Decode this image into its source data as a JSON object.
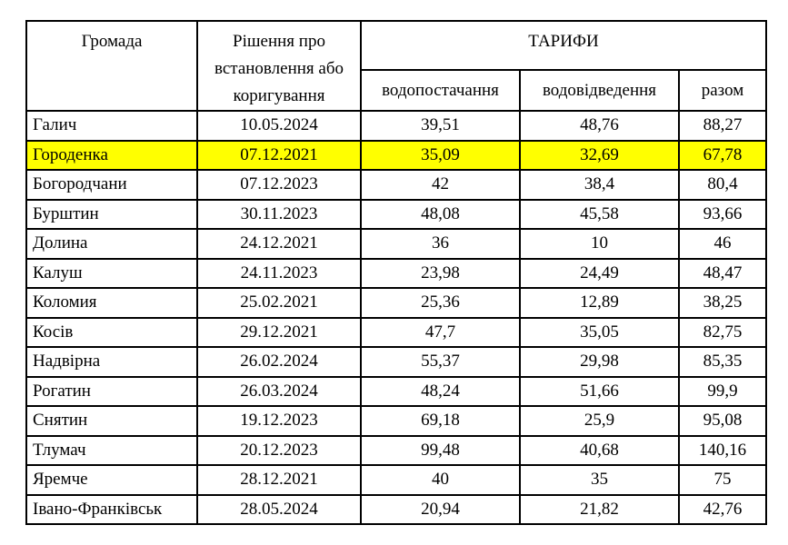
{
  "table": {
    "headers": {
      "community": "Громада",
      "decision": "Рішення про встановлення або коригування",
      "tariffs": "ТАРИФИ",
      "water_supply": "водопостачання",
      "sewerage": "водовідведення",
      "total": "разом"
    },
    "highlight_color": "#ffff00",
    "rows": [
      {
        "community": "Галич",
        "decision_date": "10.05.2024",
        "water_supply": "39,51",
        "sewerage": "48,76",
        "total": "88,27",
        "highlighted": false
      },
      {
        "community": "Городенка",
        "decision_date": "07.12.2021",
        "water_supply": "35,09",
        "sewerage": "32,69",
        "total": "67,78",
        "highlighted": true
      },
      {
        "community": "Богородчани",
        "decision_date": "07.12.2023",
        "water_supply": "42",
        "sewerage": "38,4",
        "total": "80,4",
        "highlighted": false
      },
      {
        "community": "Бурштин",
        "decision_date": "30.11.2023",
        "water_supply": "48,08",
        "sewerage": "45,58",
        "total": "93,66",
        "highlighted": false
      },
      {
        "community": "Долина",
        "decision_date": "24.12.2021",
        "water_supply": "36",
        "sewerage": "10",
        "total": "46",
        "highlighted": false
      },
      {
        "community": "Калуш",
        "decision_date": "24.11.2023",
        "water_supply": "23,98",
        "sewerage": "24,49",
        "total": "48,47",
        "highlighted": false
      },
      {
        "community": "Коломия",
        "decision_date": "25.02.2021",
        "water_supply": "25,36",
        "sewerage": "12,89",
        "total": "38,25",
        "highlighted": false
      },
      {
        "community": "Косів",
        "decision_date": "29.12.2021",
        "water_supply": "47,7",
        "sewerage": "35,05",
        "total": "82,75",
        "highlighted": false
      },
      {
        "community": "Надвірна",
        "decision_date": "26.02.2024",
        "water_supply": "55,37",
        "sewerage": "29,98",
        "total": "85,35",
        "highlighted": false
      },
      {
        "community": "Рогатин",
        "decision_date": "26.03.2024",
        "water_supply": "48,24",
        "sewerage": "51,66",
        "total": "99,9",
        "highlighted": false
      },
      {
        "community": "Снятин",
        "decision_date": "19.12.2023",
        "water_supply": "69,18",
        "sewerage": "25,9",
        "total": "95,08",
        "highlighted": false
      },
      {
        "community": "Тлумач",
        "decision_date": "20.12.2023",
        "water_supply": "99,48",
        "sewerage": "40,68",
        "total": "140,16",
        "highlighted": false
      },
      {
        "community": "Яремче",
        "decision_date": "28.12.2021",
        "water_supply": "40",
        "sewerage": "35",
        "total": "75",
        "highlighted": false
      },
      {
        "community": "Івано-Франківськ",
        "decision_date": "28.05.2024",
        "water_supply": "20,94",
        "sewerage": "21,82",
        "total": "42,76",
        "highlighted": false
      }
    ]
  }
}
